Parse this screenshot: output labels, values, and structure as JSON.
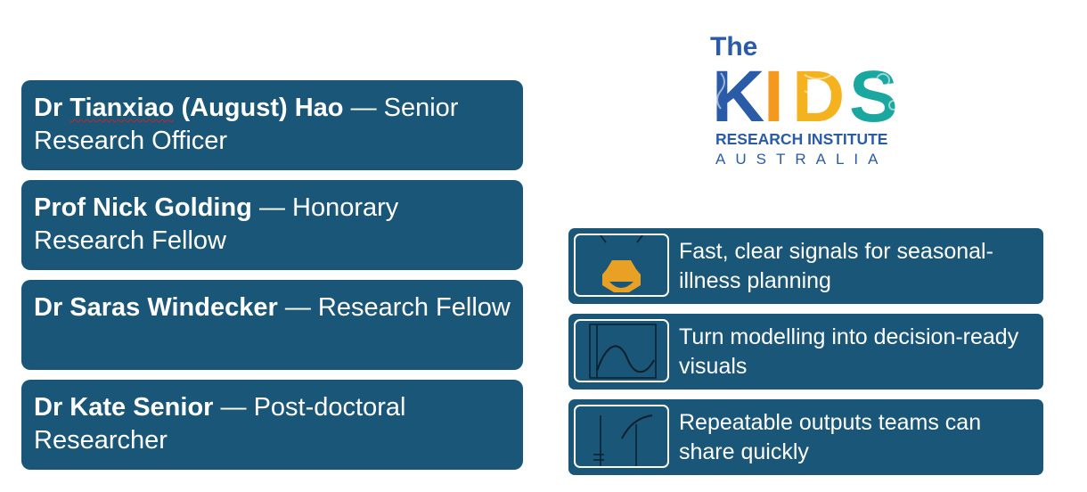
{
  "team": [
    {
      "name_parts": [
        "Dr ",
        "Tianxiao",
        " (August) Hao"
      ],
      "role": " — Senior Research Officer"
    },
    {
      "name": "Prof Nick Golding",
      "role": " — Honorary Research Fellow"
    },
    {
      "name": "Dr Saras Windecker",
      "role": " — Research Fellow"
    },
    {
      "name": "Dr Kate Senior",
      "role": " — Post-doctoral Researcher"
    }
  ],
  "logo": {
    "the": "The",
    "kids": [
      "K",
      "I",
      "D",
      "S"
    ],
    "research": "RESEARCH INSTITUTE",
    "australia": "AUSTRALIA"
  },
  "features": [
    {
      "text": "Fast, clear signals for seasonal-illness planning",
      "icon": "warning-signal-icon"
    },
    {
      "text": "Turn modelling into decision-ready visuals",
      "icon": "wave-chart-icon"
    },
    {
      "text": "Repeatable outputs teams can share quickly",
      "icon": "growth-curve-icon"
    }
  ],
  "colors": {
    "card": "#1a5678",
    "logo_blue": "#2a5ba8",
    "logo_orange": "#f39a1e",
    "logo_teal": "#1aa7a0",
    "icon_orange": "#e8a025"
  }
}
